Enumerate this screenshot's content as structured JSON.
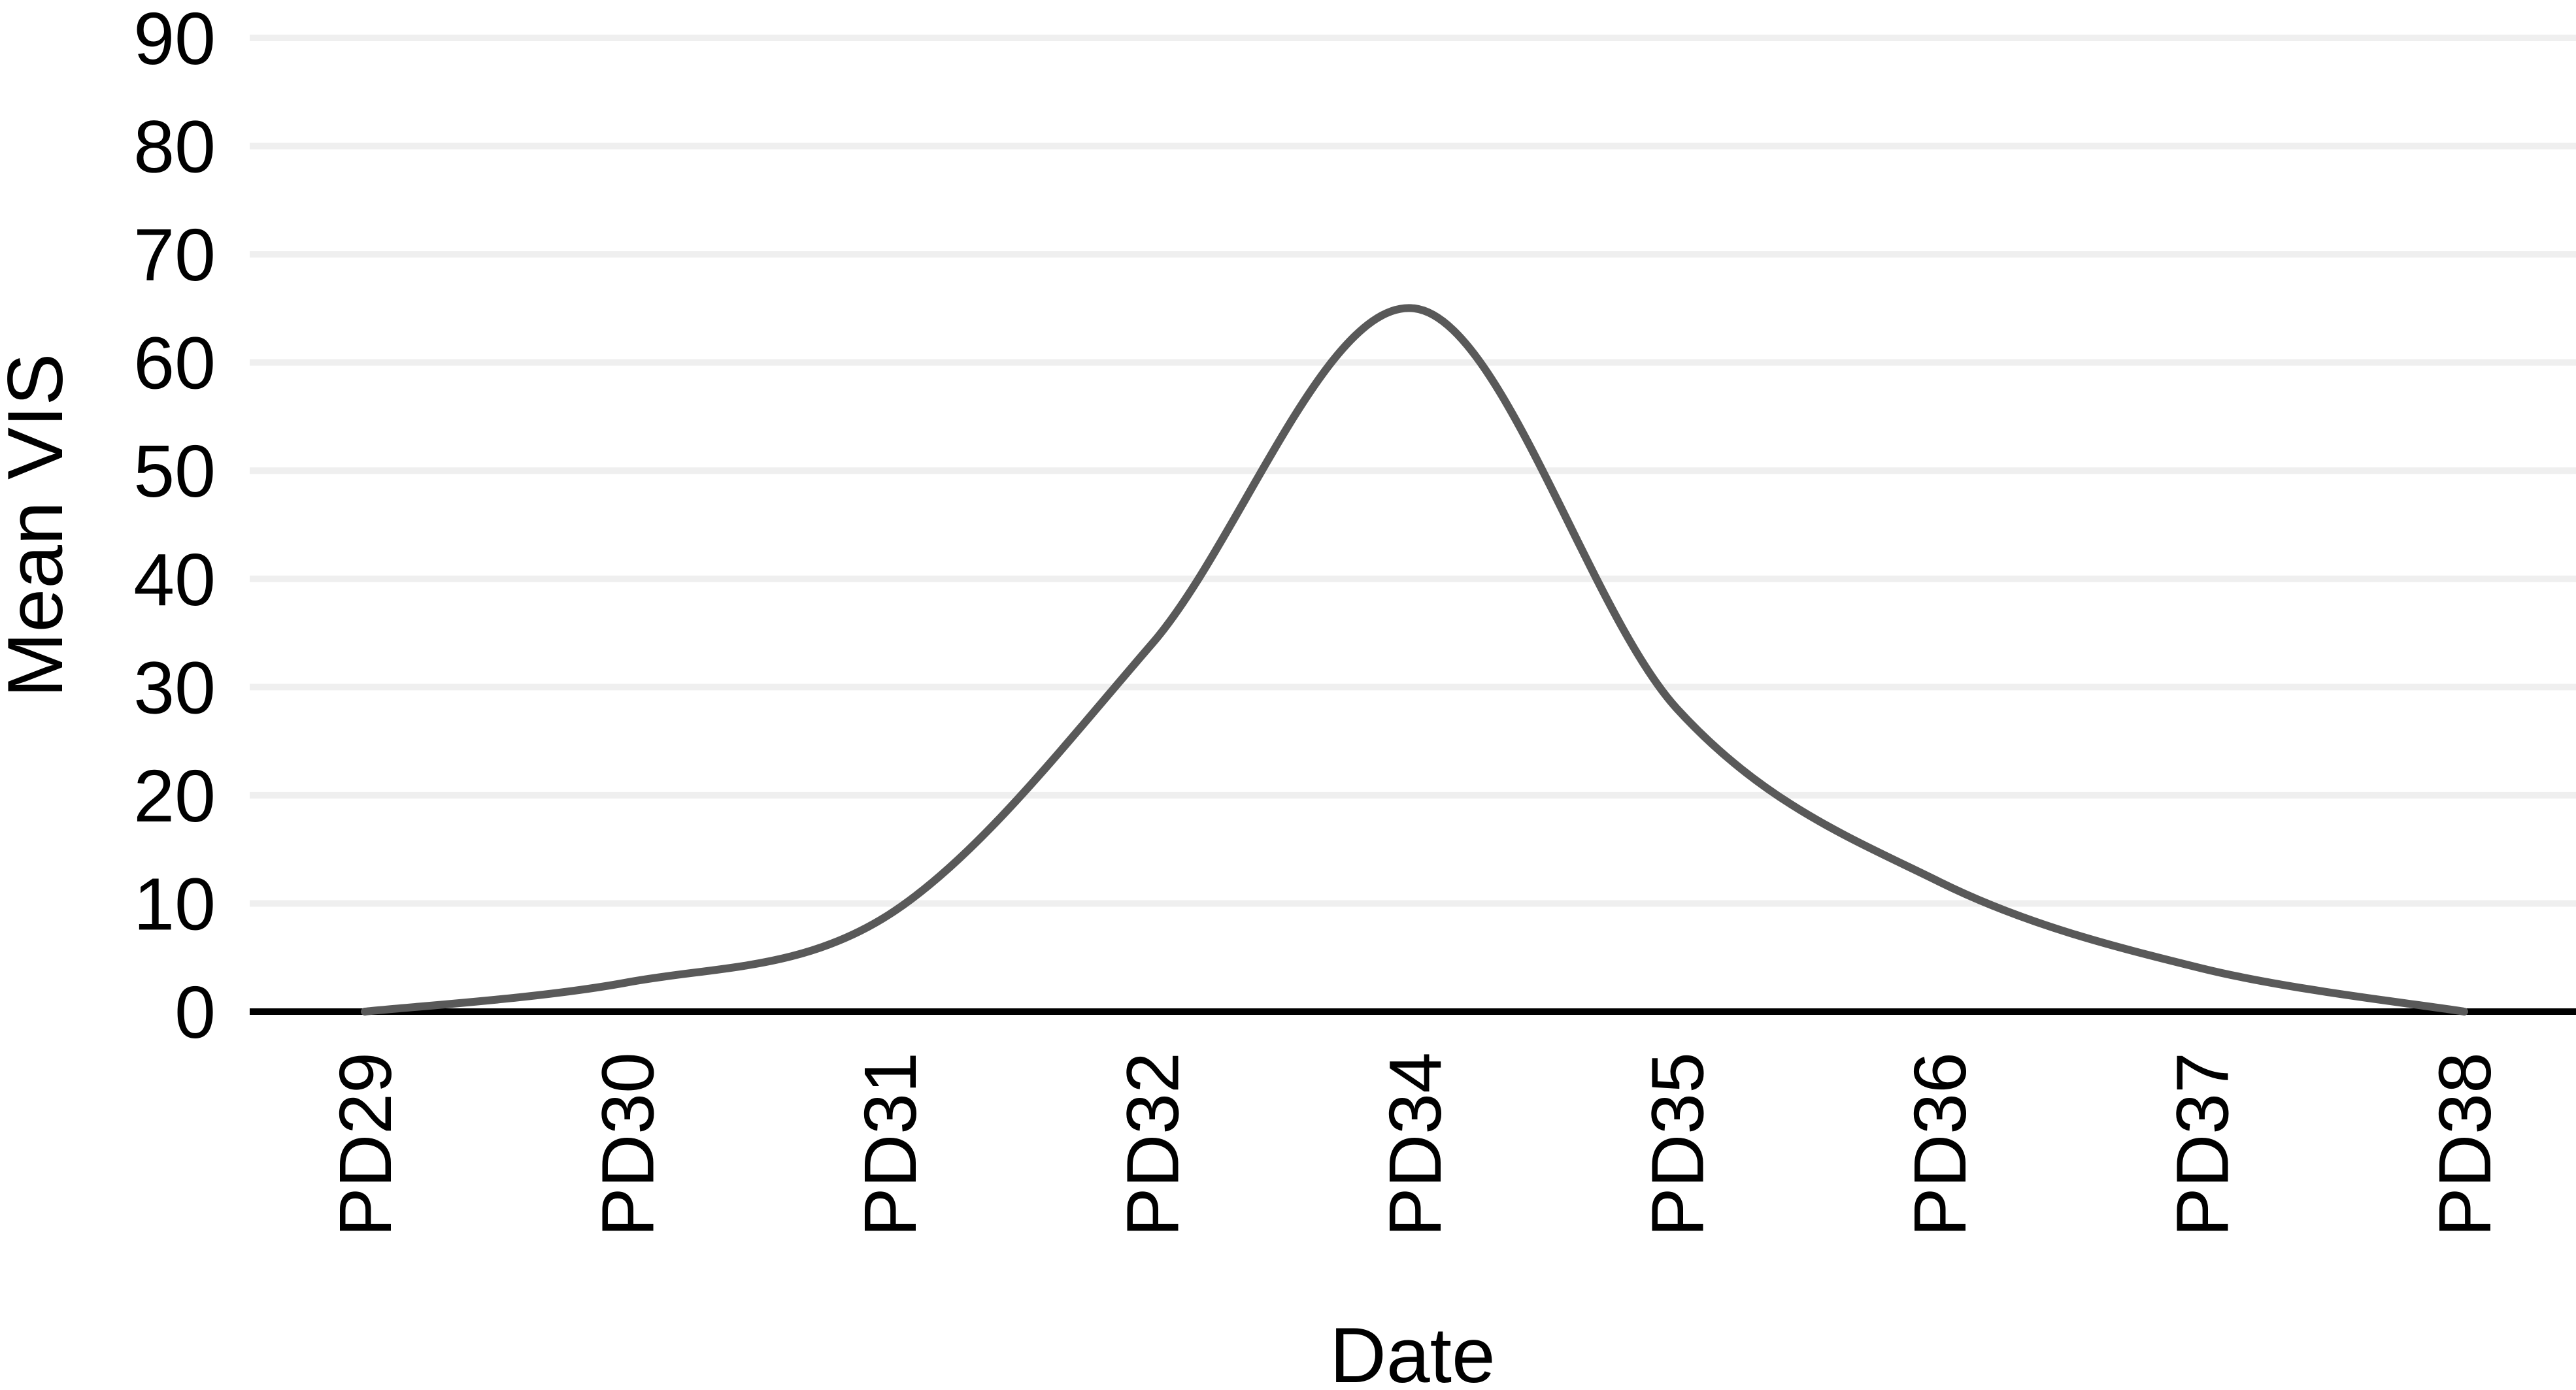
{
  "chart_data": {
    "type": "line",
    "x_label": "Date",
    "y_label": "Mean VIS",
    "categories": [
      "PD29",
      "PD30",
      "PD31",
      "PD32",
      "PD34",
      "PD35",
      "PD36",
      "PD37",
      "PD38"
    ],
    "values": [
      0,
      2.7,
      9,
      34,
      65,
      28,
      12,
      4,
      0
    ],
    "color": "#595959",
    "ylim": [
      0,
      90
    ],
    "yticks": [
      0,
      10,
      20,
      30,
      40,
      50,
      60,
      70,
      80,
      90
    ],
    "grid": true
  }
}
